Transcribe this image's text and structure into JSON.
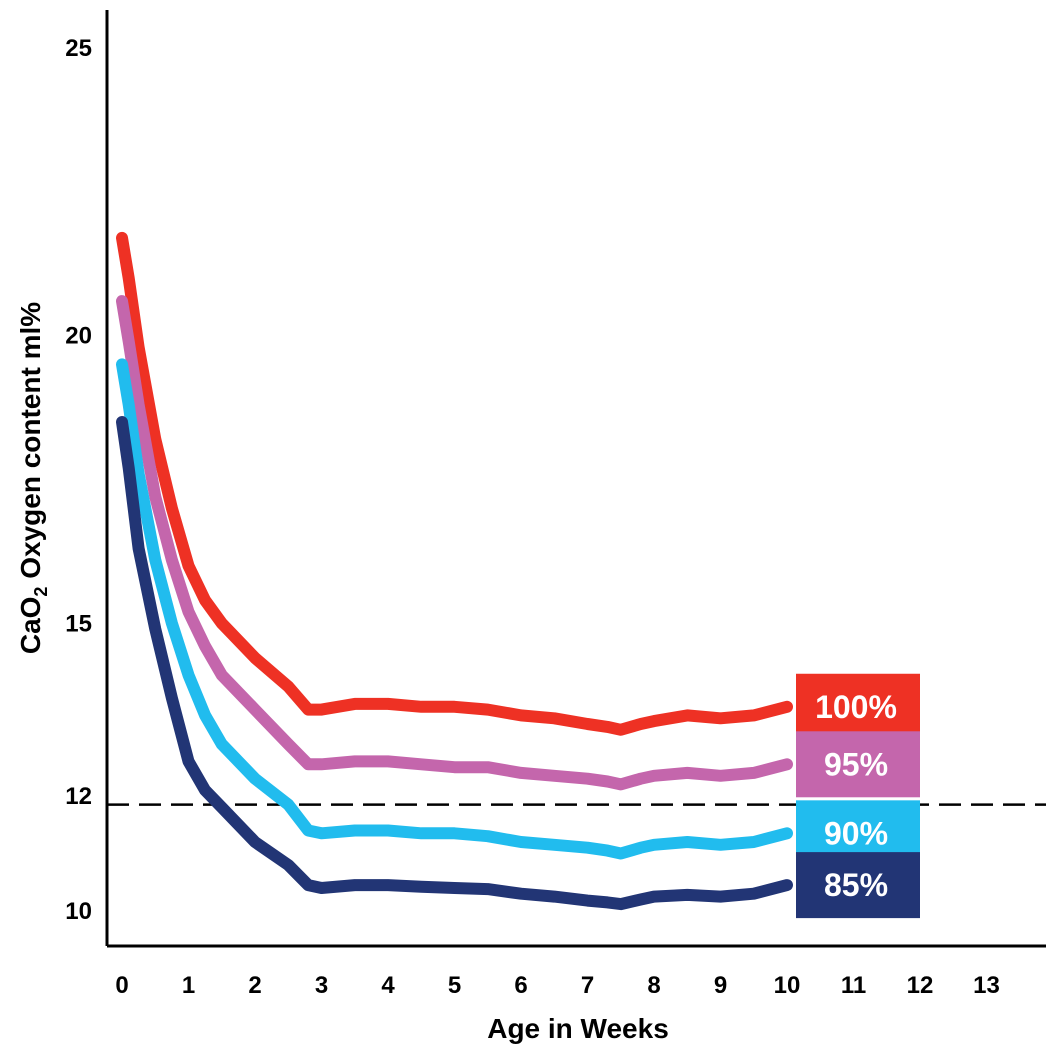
{
  "chart_data": {
    "type": "line",
    "title": "",
    "xlabel": "Age in Weeks",
    "ylabel": {
      "prefix": "CaO",
      "subscript": "2",
      "suffix": " Oxygen content ml%"
    },
    "x_ticks": [
      "0",
      "1",
      "2",
      "3",
      "4",
      "5",
      "6",
      "7",
      "8",
      "9",
      "10",
      "11",
      "12",
      "13"
    ],
    "y_ticks": [
      "10",
      "12",
      "15",
      "20",
      "25"
    ],
    "y_tick_values": [
      10,
      12,
      15,
      20,
      25
    ],
    "xlim": [
      -0.2,
      13.5
    ],
    "ylim": [
      9,
      25.7
    ],
    "reference_line": {
      "y": 11.85,
      "style": "dashed"
    },
    "series": [
      {
        "name": "100%",
        "color": "#ee3124",
        "x": [
          0,
          0.1,
          0.25,
          0.5,
          0.75,
          1,
          1.25,
          1.5,
          2,
          2.5,
          2.8,
          3,
          3.5,
          4,
          4.5,
          5,
          5.5,
          6,
          6.5,
          7,
          7.3,
          7.5,
          7.8,
          8,
          8.5,
          9,
          9.5,
          10
        ],
        "y": [
          21.7,
          21.0,
          19.8,
          18.2,
          17.0,
          16.0,
          15.4,
          15.0,
          14.4,
          13.9,
          13.5,
          13.5,
          13.6,
          13.6,
          13.55,
          13.55,
          13.5,
          13.4,
          13.35,
          13.25,
          13.2,
          13.15,
          13.25,
          13.3,
          13.4,
          13.35,
          13.4,
          13.55
        ]
      },
      {
        "name": "95%",
        "color": "#c466ac",
        "x": [
          0,
          0.1,
          0.25,
          0.5,
          0.75,
          1,
          1.25,
          1.5,
          2,
          2.5,
          2.8,
          3,
          3.5,
          4,
          4.5,
          5,
          5.5,
          6,
          6.5,
          7,
          7.3,
          7.5,
          7.8,
          8,
          8.5,
          9,
          9.5,
          10
        ],
        "y": [
          20.6,
          19.9,
          18.8,
          17.2,
          16.1,
          15.2,
          14.6,
          14.1,
          13.5,
          12.9,
          12.55,
          12.55,
          12.6,
          12.6,
          12.55,
          12.5,
          12.5,
          12.4,
          12.35,
          12.3,
          12.25,
          12.2,
          12.3,
          12.35,
          12.4,
          12.35,
          12.4,
          12.55
        ]
      },
      {
        "name": "90%",
        "color": "#21bcee",
        "x": [
          0,
          0.1,
          0.25,
          0.5,
          0.75,
          1,
          1.25,
          1.5,
          2,
          2.5,
          2.8,
          3,
          3.5,
          4,
          4.5,
          5,
          5.5,
          6,
          6.5,
          7,
          7.3,
          7.5,
          7.8,
          8,
          8.5,
          9,
          9.5,
          10
        ],
        "y": [
          19.5,
          18.8,
          17.6,
          16.1,
          15.0,
          14.1,
          13.4,
          12.9,
          12.3,
          11.85,
          11.4,
          11.35,
          11.4,
          11.4,
          11.35,
          11.35,
          11.3,
          11.2,
          11.15,
          11.1,
          11.05,
          11.0,
          11.1,
          11.15,
          11.2,
          11.15,
          11.2,
          11.35
        ]
      },
      {
        "name": "85%",
        "color": "#223575",
        "x": [
          0,
          0.1,
          0.25,
          0.5,
          0.75,
          1,
          1.25,
          1.5,
          2,
          2.5,
          2.8,
          3,
          3.5,
          4,
          4.5,
          5,
          5.5,
          6,
          6.5,
          7,
          7.3,
          7.5,
          7.8,
          8,
          8.5,
          9,
          9.5,
          10
        ],
        "y": [
          18.5,
          17.7,
          16.3,
          14.9,
          13.7,
          12.6,
          12.1,
          11.8,
          11.2,
          10.8,
          10.45,
          10.4,
          10.45,
          10.45,
          10.42,
          10.4,
          10.38,
          10.3,
          10.25,
          10.18,
          10.15,
          10.12,
          10.2,
          10.25,
          10.28,
          10.25,
          10.3,
          10.45
        ]
      }
    ]
  }
}
